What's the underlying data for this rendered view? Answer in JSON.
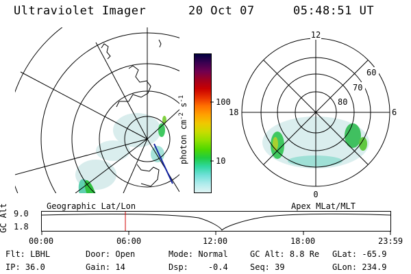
{
  "header": {
    "title": "Ultraviolet Imager",
    "date": "20 Oct 07",
    "time": "05:48:51 UT"
  },
  "left_map": {
    "label": "Geographic Lat/Lon"
  },
  "right_map": {
    "label": "Apex MLat/MLT",
    "mlt_labels": {
      "top": "12",
      "left": "18",
      "right": "6",
      "bottom": "0"
    },
    "lat_labels": [
      "60",
      "70",
      "80"
    ]
  },
  "colorbar": {
    "unit_label": "photon cm",
    "unit_exp1": "-2",
    "unit_mid": "s",
    "unit_exp2": "-1",
    "ticks": [
      "100",
      "10"
    ],
    "colors": [
      "#000040",
      "#3a0050",
      "#700050",
      "#a00020",
      "#c80000",
      "#e83000",
      "#ff7000",
      "#ffa000",
      "#f0c800",
      "#c8dc00",
      "#90e000",
      "#50d800",
      "#20cc40",
      "#30d8a0",
      "#70e0d8",
      "#b0ecec",
      "#e0f4f4"
    ]
  },
  "timeline": {
    "y_label": "GC Alt",
    "y_ticks": [
      "9.0",
      "1.8"
    ],
    "x_ticks": [
      "00:00",
      "06:00",
      "12:00",
      "18:00",
      "23:59"
    ],
    "marker_color": "#d00000"
  },
  "status": {
    "row1": [
      {
        "key": "Flt:",
        "val": "LBHL"
      },
      {
        "key": "Door:",
        "val": "Open"
      },
      {
        "key": "Mode:",
        "val": "Normal"
      },
      {
        "key": "GC Alt:",
        "val": "8.8 Re"
      },
      {
        "key": "GLat:",
        "val": "-65.9"
      }
    ],
    "row2": [
      {
        "key": "IP:",
        "val": "36.0"
      },
      {
        "key": "Gain:",
        "val": "14"
      },
      {
        "key": "Dsp:",
        "val": "-0.4"
      },
      {
        "key": "Seq:",
        "val": "39"
      },
      {
        "key": "GLon:",
        "val": "234.9"
      }
    ]
  }
}
